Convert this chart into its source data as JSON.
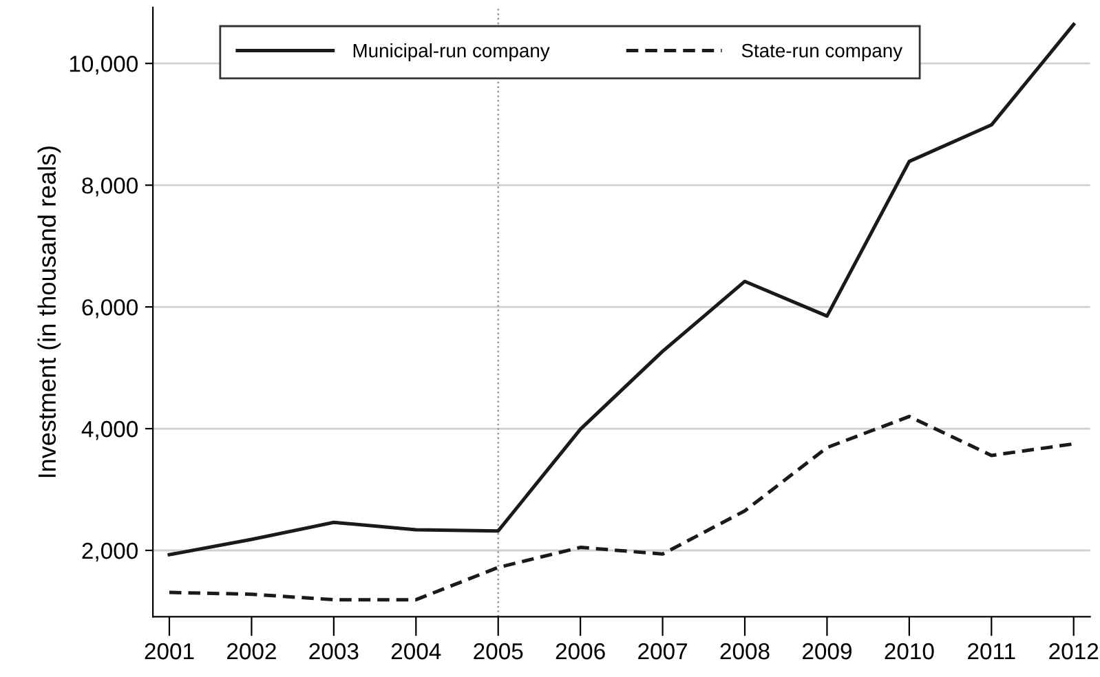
{
  "chart_data": {
    "type": "line",
    "ylabel": "Investment (in thousand reals)",
    "x": [
      2001,
      2002,
      2003,
      2004,
      2005,
      2006,
      2007,
      2008,
      2009,
      2010,
      2011,
      2012
    ],
    "series": [
      {
        "name": "Municipal-run company",
        "color": "#1a1a1a",
        "line_style": "solid",
        "values": [
          1930,
          2180,
          2460,
          2340,
          2320,
          3990,
          5270,
          6420,
          5850,
          8390,
          8990,
          10640
        ]
      },
      {
        "name": "State-run company",
        "color": "#1a1a1a",
        "line_style": "dashed",
        "values": [
          1310,
          1280,
          1190,
          1190,
          1720,
          2050,
          1940,
          2650,
          3690,
          4200,
          3560,
          3750
        ]
      }
    ],
    "xlim": [
      2000.8,
      2012.2
    ],
    "xticks": [
      2001,
      2002,
      2003,
      2004,
      2005,
      2006,
      2007,
      2008,
      2009,
      2010,
      2011,
      2012
    ],
    "ylim": [
      910,
      10920
    ],
    "yticks": [
      {
        "value": 2000,
        "label": "2,000"
      },
      {
        "value": 4000,
        "label": "4,000"
      },
      {
        "value": 6000,
        "label": "6,000"
      },
      {
        "value": 8000,
        "label": "8,000"
      },
      {
        "value": 10000,
        "label": "10,000"
      }
    ],
    "ref_lines": [
      {
        "axis": "x",
        "value": 2005,
        "color": "#999999",
        "line_style": "dotted"
      }
    ],
    "grid": "y",
    "legend": "top",
    "marker": "none"
  }
}
